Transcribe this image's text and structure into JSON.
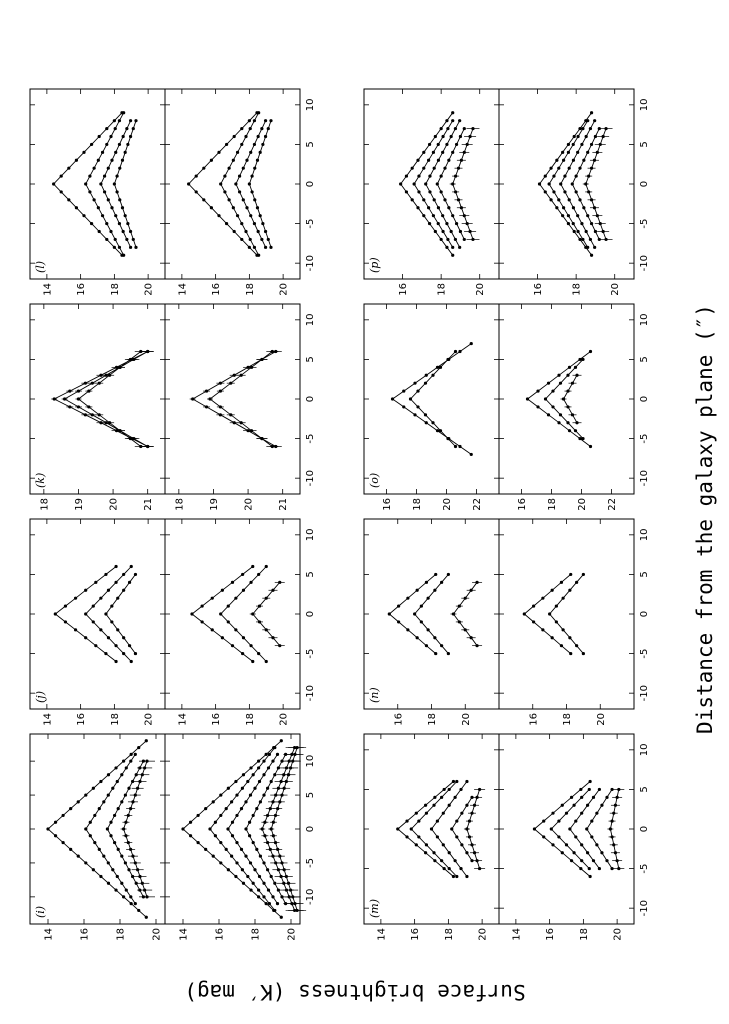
{
  "figure": {
    "xlabel": "Distance from the galaxy plane (″)",
    "ylabel": "Surface brightness (K′ mag)"
  },
  "chart_data": [
    {
      "type": "line",
      "panel": "(i)",
      "xlim": [
        -14,
        14
      ],
      "ylim": [
        13,
        20.5
      ],
      "x_ticks": [
        -10,
        -5,
        0,
        5,
        10
      ],
      "y_ticks": [
        14,
        16,
        18,
        20
      ],
      "subplots": [
        {
          "series": [
            {
              "peak": 14.0,
              "half": 13,
              "slope": 0.42
            },
            {
              "peak": 16.1,
              "half": 11,
              "slope": 0.25
            },
            {
              "peak": 17.3,
              "half": 10,
              "slope": 0.2
            },
            {
              "peak": 18.2,
              "half": 10,
              "slope": 0.13,
              "errorbars": true
            }
          ]
        },
        {
          "series": [
            {
              "peak": 14.0,
              "half": 13,
              "slope": 0.42
            },
            {
              "peak": 15.5,
              "half": 12,
              "slope": 0.3
            },
            {
              "peak": 16.5,
              "half": 11,
              "slope": 0.25
            },
            {
              "peak": 17.5,
              "half": 11,
              "slope": 0.2
            },
            {
              "peak": 18.4,
              "half": 12,
              "slope": 0.15,
              "errorbars": true
            },
            {
              "peak": 18.9,
              "half": 12,
              "slope": 0.12,
              "errorbars": true
            }
          ]
        }
      ]
    },
    {
      "type": "line",
      "panel": "(j)",
      "xlim": [
        -12,
        12
      ],
      "ylim": [
        13,
        21
      ],
      "x_ticks": [
        -10,
        -5,
        0,
        5,
        10
      ],
      "y_ticks": [
        14,
        16,
        18,
        20
      ],
      "subplots": [
        {
          "series": [
            {
              "peak": 14.5,
              "half": 6,
              "slope": 0.6
            },
            {
              "peak": 16.3,
              "half": 6,
              "slope": 0.45
            },
            {
              "peak": 17.5,
              "half": 5,
              "slope": 0.35
            }
          ]
        },
        {
          "series": [
            {
              "peak": 14.6,
              "half": 6,
              "slope": 0.6
            },
            {
              "peak": 16.3,
              "half": 6,
              "slope": 0.45
            },
            {
              "peak": 18.2,
              "half": 4,
              "slope": 0.4,
              "errorbars": true
            }
          ]
        }
      ]
    },
    {
      "type": "line",
      "panel": "(k)",
      "xlim": [
        -12,
        12
      ],
      "ylim": [
        17.6,
        21.5
      ],
      "x_ticks": [
        -10,
        -5,
        0,
        5,
        10
      ],
      "y_ticks": [
        18,
        19,
        20,
        21
      ],
      "subplots": [
        {
          "series": [
            {
              "peak": 18.3,
              "half": 6,
              "slope": 0.45,
              "errorbars": true
            },
            {
              "peak": 18.6,
              "half": 6,
              "slope": 0.4,
              "errorbars": true
            },
            {
              "peak": 19.0,
              "half": 6,
              "slope": 0.3,
              "errorbars": true
            }
          ]
        },
        {
          "series": [
            {
              "peak": 18.4,
              "half": 6,
              "slope": 0.4,
              "errorbars": true
            },
            {
              "peak": 18.9,
              "half": 6,
              "slope": 0.3,
              "errorbars": true
            }
          ]
        }
      ]
    },
    {
      "type": "line",
      "panel": "(l)",
      "xlim": [
        -12,
        12
      ],
      "ylim": [
        13,
        21
      ],
      "x_ticks": [
        -10,
        -5,
        0,
        5,
        10
      ],
      "y_ticks": [
        14,
        16,
        18,
        20
      ],
      "subplots": [
        {
          "series": [
            {
              "peak": 14.4,
              "half": 9,
              "slope": 0.45
            },
            {
              "peak": 16.3,
              "half": 9,
              "slope": 0.25
            },
            {
              "peak": 17.2,
              "half": 8,
              "slope": 0.22
            },
            {
              "peak": 18.0,
              "half": 8,
              "slope": 0.16
            }
          ]
        },
        {
          "series": [
            {
              "peak": 14.4,
              "half": 9,
              "slope": 0.45
            },
            {
              "peak": 16.3,
              "half": 9,
              "slope": 0.25
            },
            {
              "peak": 17.2,
              "half": 8,
              "slope": 0.22
            },
            {
              "peak": 18.0,
              "half": 8,
              "slope": 0.16
            }
          ]
        }
      ]
    },
    {
      "type": "line",
      "panel": "(m)",
      "xlim": [
        -12,
        12
      ],
      "ylim": [
        13,
        21
      ],
      "x_ticks": [
        -10,
        -5,
        0,
        5,
        10
      ],
      "y_ticks": [
        14,
        16,
        18,
        20
      ],
      "subplots": [
        {
          "series": [
            {
              "peak": 15.0,
              "half": 6,
              "slope": 0.55
            },
            {
              "peak": 15.8,
              "half": 6,
              "slope": 0.45
            },
            {
              "peak": 17.0,
              "half": 6,
              "slope": 0.35
            },
            {
              "peak": 18.2,
              "half": 4,
              "slope": 0.3
            },
            {
              "peak": 19.1,
              "half": 5,
              "slope": 0.15,
              "errorbars": true
            }
          ]
        },
        {
          "series": [
            {
              "peak": 15.1,
              "half": 6,
              "slope": 0.55
            },
            {
              "peak": 16.1,
              "half": 5,
              "slope": 0.45
            },
            {
              "peak": 17.2,
              "half": 5,
              "slope": 0.35
            },
            {
              "peak": 18.2,
              "half": 5,
              "slope": 0.3
            },
            {
              "peak": 19.6,
              "half": 5,
              "slope": 0.1,
              "errorbars": true
            }
          ]
        }
      ]
    },
    {
      "type": "line",
      "panel": "(n)",
      "xlim": [
        -12,
        12
      ],
      "ylim": [
        14,
        22
      ],
      "x_ticks": [
        -10,
        -5,
        0,
        5,
        10
      ],
      "y_ticks": [
        16,
        18,
        20
      ],
      "subplots": [
        {
          "series": [
            {
              "peak": 15.5,
              "half": 5,
              "slope": 0.55
            },
            {
              "peak": 17.0,
              "half": 5,
              "slope": 0.4
            },
            {
              "peak": 19.3,
              "half": 4,
              "slope": 0.35,
              "errorbars": true
            }
          ]
        },
        {
          "series": [
            {
              "peak": 15.5,
              "half": 5,
              "slope": 0.55
            },
            {
              "peak": 17.0,
              "half": 5,
              "slope": 0.4
            }
          ]
        }
      ]
    },
    {
      "type": "line",
      "panel": "(o)",
      "xlim": [
        -12,
        12
      ],
      "ylim": [
        14.5,
        23.5
      ],
      "x_ticks": [
        -10,
        -5,
        0,
        5,
        10
      ],
      "y_ticks": [
        16,
        18,
        20,
        22
      ],
      "subplots": [
        {
          "series": [
            {
              "peak": 16.4,
              "half": 7,
              "slope": 0.75
            },
            {
              "peak": 17.6,
              "half": 6,
              "slope": 0.5
            }
          ]
        },
        {
          "series": [
            {
              "peak": 16.4,
              "half": 6,
              "slope": 0.7
            },
            {
              "peak": 17.6,
              "half": 5,
              "slope": 0.5
            },
            {
              "peak": 18.8,
              "half": 3,
              "slope": 0.3,
              "errorbars": true
            }
          ]
        }
      ]
    },
    {
      "type": "line",
      "panel": "(p)",
      "xlim": [
        -12,
        12
      ],
      "ylim": [
        14,
        21
      ],
      "x_ticks": [
        -10,
        -5,
        0,
        5,
        10
      ],
      "y_ticks": [
        16,
        18,
        20
      ],
      "subplots": [
        {
          "series": [
            {
              "peak": 15.9,
              "half": 9,
              "slope": 0.3
            },
            {
              "peak": 16.6,
              "half": 8,
              "slope": 0.25
            },
            {
              "peak": 17.2,
              "half": 8,
              "slope": 0.22
            },
            {
              "peak": 17.8,
              "half": 7,
              "slope": 0.2
            },
            {
              "peak": 18.6,
              "half": 7,
              "slope": 0.15,
              "errorbars": true
            }
          ]
        },
        {
          "series": [
            {
              "peak": 16.1,
              "half": 9,
              "slope": 0.3
            },
            {
              "peak": 16.6,
              "half": 8,
              "slope": 0.25
            },
            {
              "peak": 17.2,
              "half": 8,
              "slope": 0.22
            },
            {
              "peak": 17.8,
              "half": 7,
              "slope": 0.2
            },
            {
              "peak": 18.5,
              "half": 7,
              "slope": 0.15,
              "errorbars": true
            }
          ]
        }
      ]
    }
  ]
}
